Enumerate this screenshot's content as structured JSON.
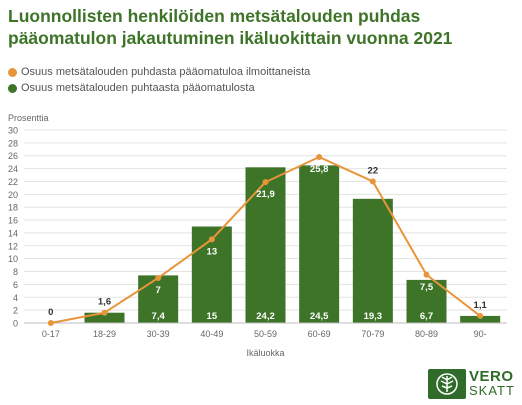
{
  "chart_data": {
    "type": "bar",
    "title": "Luonnollisten henkilöiden metsätalouden puhdas pääomatulon jakautuminen ikäluokittain vuonna 2021",
    "ylabel": "Prosenttia",
    "xlabel": "Ikäluokka",
    "categories": [
      "0-17",
      "18-29",
      "30-39",
      "40-49",
      "50-59",
      "60-69",
      "70-79",
      "80-89",
      "90-"
    ],
    "ylim": [
      0,
      30
    ],
    "yticks": [
      0,
      2,
      4,
      6,
      8,
      10,
      12,
      14,
      16,
      18,
      20,
      22,
      24,
      26,
      28,
      30
    ],
    "grid": true,
    "legend_position": "top-left",
    "series": [
      {
        "name": "Osuus metsätalouden puhdasta pääomatuloa ilmoittaneista",
        "type": "line",
        "color": "#e8953a",
        "values": [
          0,
          1.6,
          7,
          13,
          21.9,
          25.8,
          22,
          7.5,
          1.1
        ],
        "labels": [
          "0",
          "1,6",
          "7",
          "13",
          "21,9",
          "25,8",
          "22",
          "7,5",
          "1,1"
        ]
      },
      {
        "name": "Osuus metsätalouden puhtaasta pääomatulosta",
        "type": "bar",
        "color": "#3d7428",
        "values": [
          0,
          1.6,
          7.4,
          15,
          24.2,
          24.5,
          19.3,
          6.7,
          1.1
        ],
        "labels": [
          "",
          "",
          "7,4",
          "15",
          "24,2",
          "24,5",
          "19,3",
          "6,7",
          ""
        ]
      }
    ]
  },
  "logo": {
    "line1": "VERO",
    "line2": "SKATT"
  }
}
